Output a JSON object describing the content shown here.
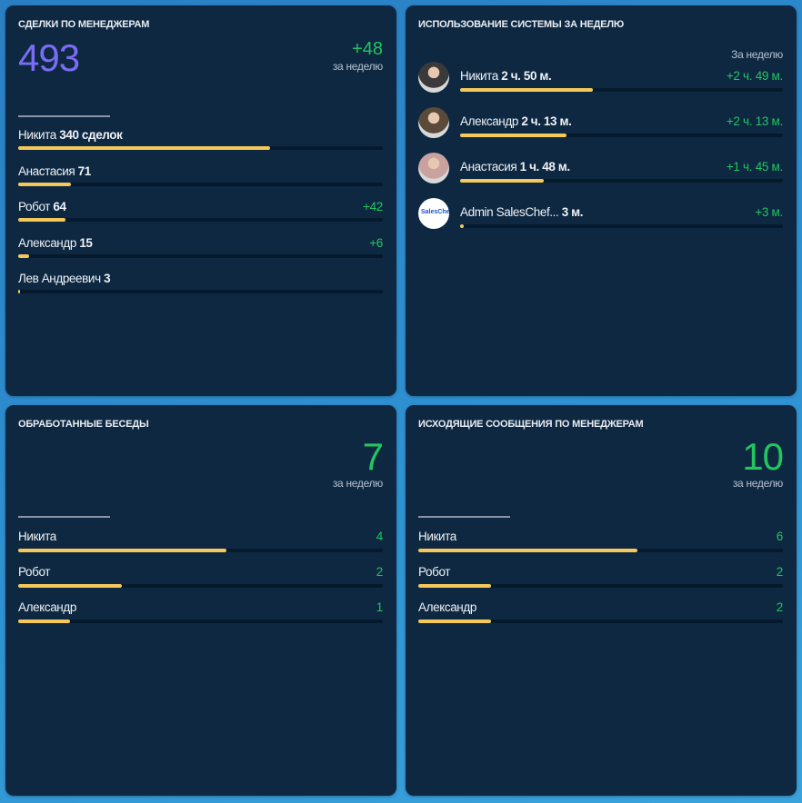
{
  "deals": {
    "title": "СДЕЛКИ ПО МЕНЕДЖЕРАМ",
    "total": "493",
    "delta": "+48",
    "period": "за неделю",
    "rows": [
      {
        "name": "Никита",
        "value": "340 сделок",
        "delta": "",
        "progress": 0.69
      },
      {
        "name": "Анастасия",
        "value": "71",
        "delta": "",
        "progress": 0.145
      },
      {
        "name": "Робот",
        "value": "64",
        "delta": "+42",
        "progress": 0.13
      },
      {
        "name": "Александр",
        "value": "15",
        "delta": "+6",
        "progress": 0.03
      },
      {
        "name": "Лев Андреевич",
        "value": "3",
        "delta": "",
        "progress": 0.006
      }
    ]
  },
  "usage": {
    "title": "ИСПОЛЬЗОВАНИЕ СИСТЕМЫ ЗА НЕДЕЛЮ",
    "period": "За неделю",
    "rows": [
      {
        "name": "Никита",
        "value": "2 ч. 50 м.",
        "delta": "+2 ч. 49 м.",
        "progress": 0.41,
        "avatar": "photo",
        "color": "#3a3a3a"
      },
      {
        "name": "Александр",
        "value": "2 ч. 13 м.",
        "delta": "+2 ч. 13 м.",
        "progress": 0.33,
        "avatar": "photo",
        "color": "#5a4a3a"
      },
      {
        "name": "Анастасия",
        "value": "1 ч. 48 м.",
        "delta": "+1 ч. 45 м.",
        "progress": 0.26,
        "avatar": "photo",
        "color": "#c9a2a0"
      },
      {
        "name": "Admin SalesChef...",
        "value": "3 м.",
        "delta": "+3 м.",
        "progress": 0.01,
        "avatar": "logo",
        "color": "#ffffff"
      }
    ],
    "logo_text": "SalesChef"
  },
  "conversations": {
    "title": "ОБРАБОТАННЫЕ БЕСЕДЫ",
    "total": "7",
    "period": "за неделю",
    "rows": [
      {
        "name": "Никита",
        "value": "",
        "delta": "4",
        "progress": 0.57
      },
      {
        "name": "Робот",
        "value": "",
        "delta": "2",
        "progress": 0.285
      },
      {
        "name": "Александр",
        "value": "",
        "delta": "1",
        "progress": 0.143
      }
    ]
  },
  "outgoing": {
    "title": "ИСХОДЯЩИЕ СООБЩЕНИЯ ПО МЕНЕДЖЕРАМ",
    "total": "10",
    "period": "за неделю",
    "rows": [
      {
        "name": "Никита",
        "value": "",
        "delta": "6",
        "progress": 0.6
      },
      {
        "name": "Робот",
        "value": "",
        "delta": "2",
        "progress": 0.2
      },
      {
        "name": "Александр",
        "value": "",
        "delta": "2",
        "progress": 0.2
      }
    ]
  },
  "colors": {
    "accent_purple": "#7b6cf6",
    "positive": "#22c55e",
    "bar": "#f5c85a"
  }
}
